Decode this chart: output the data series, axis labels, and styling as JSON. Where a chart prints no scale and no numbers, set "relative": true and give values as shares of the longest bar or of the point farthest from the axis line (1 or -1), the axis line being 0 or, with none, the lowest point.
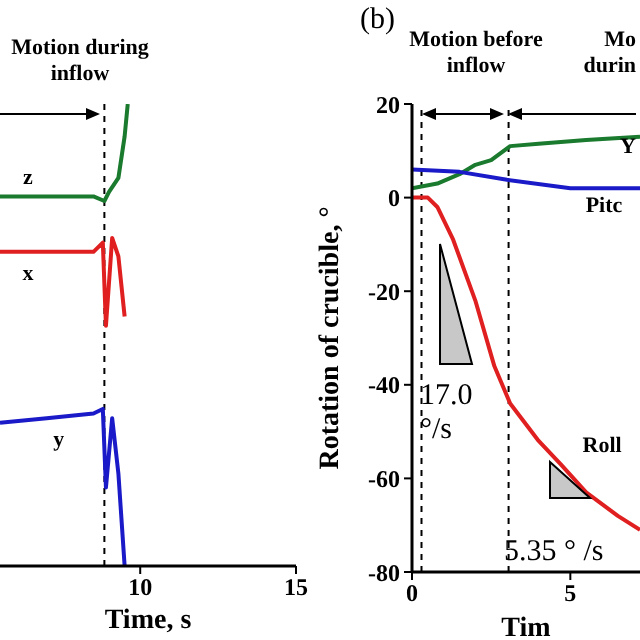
{
  "chart_data": [
    {
      "type": "line",
      "relative": true,
      "xlabel": "Time, s",
      "xlim": [
        5.5,
        15
      ],
      "xticks": [
        10,
        15
      ],
      "tick_labels": "x",
      "grid": false,
      "legend": false,
      "marker": "none",
      "line_style": "solid",
      "annotations": [
        "Motion during inflow"
      ],
      "ref_lines": [
        {
          "axis": "x",
          "value": 8.85,
          "line_style": "dashed",
          "color": "#000000"
        }
      ],
      "series": [
        {
          "name": "z",
          "color": "#1a7a2e",
          "x": [
            5.5,
            7,
            8.5,
            8.85,
            9.0,
            9.3,
            9.5,
            9.6
          ],
          "values": [
            0.8,
            0.8,
            0.8,
            0.79,
            0.81,
            0.84,
            0.93,
            1
          ]
        },
        {
          "name": "x",
          "color": "#e02020",
          "x": [
            5.5,
            7,
            8.5,
            8.8,
            8.9,
            9.1,
            9.3,
            9.5
          ],
          "values": [
            0.68,
            0.68,
            0.68,
            0.7,
            0.52,
            0.71,
            0.67,
            0.54
          ]
        },
        {
          "name": "y",
          "color": "#1a1ac8",
          "x": [
            5.5,
            7,
            8.5,
            8.8,
            8.9,
            9.1,
            9.3,
            9.5
          ],
          "values": [
            0.31,
            0.32,
            0.33,
            0.34,
            0.17,
            0.32,
            0.2,
            0
          ]
        }
      ]
    },
    {
      "type": "line",
      "title": "(b)",
      "xlabel": "Tim",
      "ylabel": "Rotation of crucible, °",
      "xlim": [
        0,
        7.2
      ],
      "xticks": [
        0,
        5
      ],
      "ylim": [
        -80,
        20
      ],
      "yticks": [
        -80,
        -60,
        -40,
        -20,
        0,
        20
      ],
      "grid": false,
      "legend": false,
      "marker": "none",
      "line_style": "solid",
      "annotations": [
        "Motion before inflow",
        "Mo\ndurin",
        "17.0 °/s",
        "5.35 ° /s"
      ],
      "ref_lines": [
        {
          "axis": "x",
          "value": 0.3,
          "line_style": "dashed",
          "color": "#000000"
        },
        {
          "axis": "x",
          "value": 3.05,
          "line_style": "dashed",
          "color": "#000000"
        }
      ],
      "series": [
        {
          "name": "Y",
          "color": "#1a7a2e",
          "x": [
            0,
            0.8,
            1.5,
            2.0,
            2.5,
            3.1,
            4,
            5.5,
            7.2
          ],
          "values": [
            2,
            3,
            5,
            7,
            8,
            11,
            11.5,
            12.3,
            13
          ]
        },
        {
          "name": "Pitc",
          "color": "#1a1ac8",
          "x": [
            0,
            1.5,
            3,
            5,
            7.2
          ],
          "values": [
            6,
            5.5,
            3.8,
            2,
            2
          ]
        },
        {
          "name": "Roll",
          "color": "#e02020",
          "x": [
            0,
            0.5,
            0.8,
            1.3,
            2.0,
            2.6,
            3.1,
            4.0,
            4.7,
            5.5,
            6.5,
            7.2
          ],
          "values": [
            0,
            0,
            -2,
            -9,
            -22,
            -36,
            -44,
            -52,
            -57,
            -63,
            -68,
            -71
          ]
        }
      ]
    }
  ]
}
